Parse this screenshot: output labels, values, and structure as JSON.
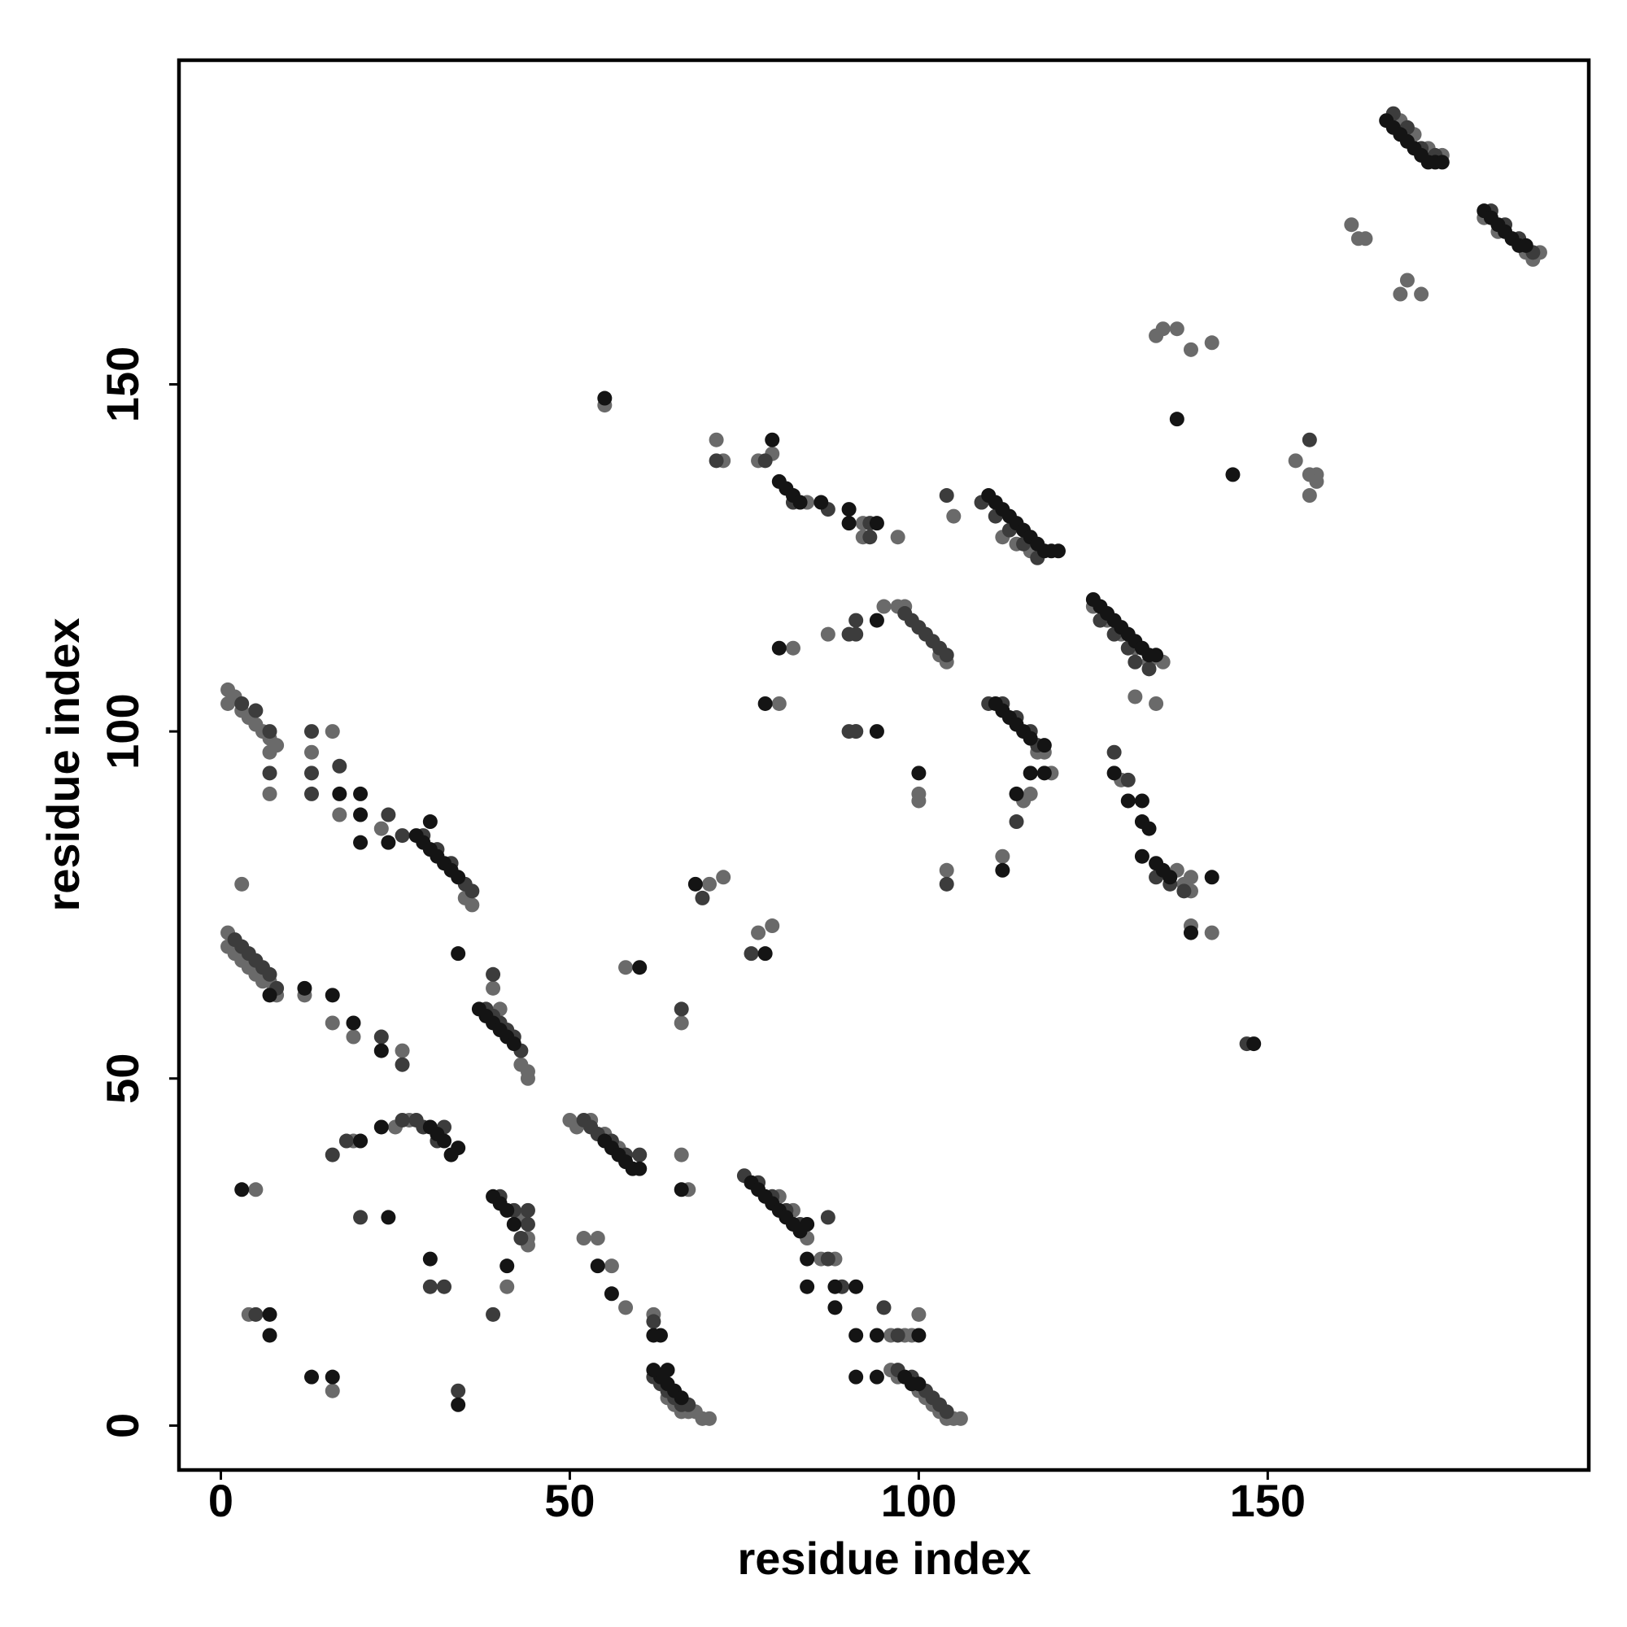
{
  "chart_data": {
    "type": "scatter",
    "x_label": "residue index",
    "y_label": "residue index",
    "xlim": [
      -6,
      196
    ],
    "ylim": [
      -6.4,
      196.7
    ],
    "xticks": [
      0,
      50,
      100,
      150
    ],
    "yticks": [
      0,
      50,
      100,
      150
    ],
    "grid": false,
    "series": [
      {
        "color": "#6a6a6a",
        "x": [
          64,
          65,
          66,
          67,
          68,
          69,
          70,
          62,
          66,
          67,
          96,
          97,
          100,
          101,
          102,
          103,
          104,
          105,
          106,
          98,
          99,
          100,
          96,
          80,
          84,
          86,
          88,
          82,
          50,
          51,
          53,
          55,
          57,
          52,
          54,
          56,
          58,
          40,
          43,
          44,
          44,
          39,
          44,
          44,
          41,
          43,
          25,
          19,
          27,
          1,
          1,
          2,
          3,
          4,
          5,
          6,
          7,
          8,
          16,
          19,
          26,
          12,
          1,
          1,
          2,
          3,
          4,
          5,
          6,
          7,
          8,
          7,
          7,
          16,
          13,
          17,
          23,
          35,
          36,
          5,
          4,
          16,
          3,
          70,
          72,
          66,
          58,
          55,
          79,
          77,
          71,
          72,
          77,
          79,
          84,
          92,
          92,
          97,
          82,
          80,
          87,
          95,
          97,
          98,
          91,
          100,
          100,
          104,
          105,
          104,
          103,
          109,
          112,
          114,
          116,
          117,
          118,
          115,
          116,
          112,
          119,
          125,
          127,
          129,
          131,
          133,
          135,
          131,
          134,
          129,
          138,
          139,
          139,
          142,
          137,
          139,
          134,
          135,
          137,
          139,
          142,
          154,
          156,
          157,
          156,
          157,
          162,
          163,
          164,
          170,
          169,
          172,
          168,
          169,
          171,
          173,
          175,
          181,
          183,
          185,
          187,
          188,
          189
        ],
        "values": [
          4,
          3,
          2,
          2,
          2,
          1,
          1,
          16,
          39,
          34,
          8,
          7,
          5,
          4,
          3,
          2,
          1,
          1,
          1,
          13,
          13,
          16,
          13,
          33,
          27,
          24,
          24,
          31,
          44,
          43,
          44,
          42,
          40,
          27,
          27,
          23,
          17,
          60,
          52,
          51,
          50,
          63,
          27,
          26,
          20,
          30,
          43,
          41,
          44,
          71,
          69,
          68,
          67,
          66,
          65,
          64,
          64,
          62,
          58,
          56,
          54,
          62,
          106,
          104,
          105,
          103,
          102,
          101,
          100,
          99,
          98,
          97,
          91,
          100,
          97,
          88,
          86,
          76,
          75,
          34,
          16,
          5,
          78,
          78,
          79,
          58,
          66,
          147,
          72,
          71,
          142,
          139,
          139,
          140,
          133,
          130,
          128,
          128,
          112,
          104,
          114,
          118,
          118,
          118,
          100,
          91,
          90,
          80,
          131,
          110,
          111,
          133,
          128,
          127,
          126,
          97,
          97,
          90,
          91,
          82,
          94,
          118,
          116,
          114,
          112,
          110,
          110,
          105,
          104,
          93,
          78,
          77,
          72,
          71,
          80,
          79,
          157,
          158,
          158,
          155,
          156,
          139,
          137,
          137,
          134,
          136,
          173,
          171,
          171,
          165,
          163,
          163,
          189,
          188,
          186,
          184,
          183,
          174,
          172,
          171,
          169,
          168,
          169
        ]
      },
      {
        "color": "#3c3c3c",
        "x": [
          62,
          63,
          64,
          65,
          66,
          67,
          62,
          97,
          99,
          101,
          102,
          103,
          104,
          75,
          77,
          79,
          81,
          83,
          87,
          89,
          95,
          97,
          87,
          52,
          53,
          54,
          56,
          58,
          38,
          39,
          40,
          41,
          42,
          43,
          39,
          40,
          42,
          44,
          44,
          43,
          39,
          26,
          28,
          29,
          32,
          31,
          18,
          2,
          3,
          4,
          5,
          6,
          7,
          8,
          26,
          23,
          3,
          5,
          7,
          7,
          13,
          13,
          13,
          17,
          24,
          26,
          29,
          31,
          33,
          35,
          36,
          5,
          34,
          30,
          32,
          20,
          16,
          66,
          60,
          69,
          76,
          71,
          78,
          82,
          87,
          93,
          93,
          90,
          91,
          91,
          98,
          99,
          100,
          101,
          102,
          103,
          104,
          90,
          91,
          104,
          104,
          109,
          111,
          113,
          115,
          117,
          110,
          112,
          114,
          116,
          117,
          114,
          126,
          128,
          130,
          131,
          133,
          128,
          130,
          134,
          136,
          138,
          147,
          156,
          168,
          170,
          172,
          174,
          182,
          184,
          186,
          188
        ],
        "values": [
          7,
          6,
          5,
          4,
          3,
          3,
          15,
          8,
          7,
          5,
          4,
          3,
          2,
          36,
          35,
          33,
          31,
          29,
          24,
          20,
          17,
          13,
          30,
          44,
          43,
          42,
          41,
          39,
          60,
          59,
          58,
          57,
          56,
          54,
          65,
          33,
          31,
          31,
          29,
          27,
          16,
          44,
          44,
          43,
          43,
          41,
          41,
          70,
          69,
          68,
          67,
          66,
          65,
          63,
          52,
          56,
          104,
          103,
          100,
          94,
          100,
          94,
          91,
          95,
          88,
          85,
          85,
          83,
          81,
          78,
          77,
          16,
          5,
          20,
          20,
          30,
          39,
          60,
          39,
          76,
          68,
          139,
          139,
          133,
          132,
          130,
          128,
          114,
          114,
          116,
          117,
          116,
          115,
          114,
          113,
          112,
          111,
          100,
          100,
          78,
          134,
          133,
          131,
          129,
          127,
          125,
          104,
          104,
          102,
          100,
          98,
          87,
          116,
          114,
          112,
          110,
          109,
          97,
          93,
          79,
          78,
          77,
          55,
          142,
          189,
          187,
          184,
          183,
          175,
          173,
          171,
          169
        ]
      },
      {
        "color": "#141414",
        "x": [
          63,
          64,
          65,
          66,
          62,
          64,
          98,
          99,
          100,
          76,
          77,
          78,
          79,
          80,
          81,
          82,
          83,
          84,
          84,
          84,
          88,
          91,
          88,
          91,
          94,
          100,
          91,
          94,
          55,
          56,
          57,
          58,
          59,
          60,
          66,
          54,
          56,
          62,
          63,
          37,
          38,
          39,
          40,
          41,
          42,
          39,
          40,
          41,
          42,
          41,
          30,
          31,
          32,
          33,
          34,
          23,
          20,
          12,
          16,
          19,
          23,
          7,
          28,
          29,
          30,
          31,
          32,
          33,
          34,
          30,
          20,
          24,
          20,
          17,
          20,
          3,
          7,
          7,
          13,
          16,
          34,
          30,
          24,
          34,
          68,
          78,
          55,
          60,
          79,
          80,
          81,
          82,
          83,
          86,
          90,
          90,
          94,
          80,
          78,
          94,
          94,
          100,
          110,
          111,
          112,
          113,
          114,
          115,
          116,
          117,
          118,
          119,
          120,
          111,
          112,
          113,
          114,
          115,
          116,
          118,
          116,
          118,
          114,
          112,
          125,
          126,
          127,
          128,
          129,
          130,
          131,
          132,
          133,
          134,
          128,
          130,
          132,
          132,
          133,
          132,
          134,
          135,
          136,
          142,
          139,
          148,
          137,
          145,
          167,
          168,
          169,
          170,
          171,
          172,
          173,
          174,
          175,
          181,
          182,
          183,
          184,
          185,
          186,
          187
        ],
        "values": [
          7,
          6,
          5,
          4,
          8,
          8,
          7,
          6,
          6,
          35,
          34,
          33,
          32,
          31,
          30,
          29,
          28,
          29,
          24,
          20,
          20,
          20,
          17,
          13,
          13,
          13,
          7,
          7,
          41,
          40,
          39,
          38,
          37,
          37,
          34,
          23,
          19,
          13,
          13,
          60,
          59,
          58,
          57,
          56,
          55,
          33,
          32,
          31,
          29,
          23,
          43,
          42,
          41,
          39,
          40,
          43,
          41,
          63,
          62,
          58,
          54,
          62,
          85,
          84,
          83,
          82,
          81,
          80,
          79,
          87,
          84,
          84,
          88,
          91,
          91,
          34,
          16,
          13,
          7,
          7,
          3,
          24,
          30,
          68,
          78,
          68,
          148,
          66,
          142,
          136,
          135,
          134,
          133,
          133,
          132,
          130,
          130,
          112,
          104,
          116,
          100,
          94,
          134,
          133,
          132,
          131,
          130,
          129,
          128,
          127,
          126,
          126,
          126,
          104,
          103,
          102,
          101,
          100,
          99,
          98,
          94,
          94,
          91,
          80,
          119,
          118,
          117,
          116,
          115,
          114,
          113,
          112,
          111,
          111,
          94,
          90,
          90,
          87,
          86,
          82,
          81,
          80,
          79,
          79,
          71,
          55,
          145,
          137,
          188,
          187,
          186,
          185,
          184,
          183,
          182,
          182,
          182,
          175,
          174,
          173,
          172,
          171,
          170,
          170
        ]
      }
    ]
  }
}
